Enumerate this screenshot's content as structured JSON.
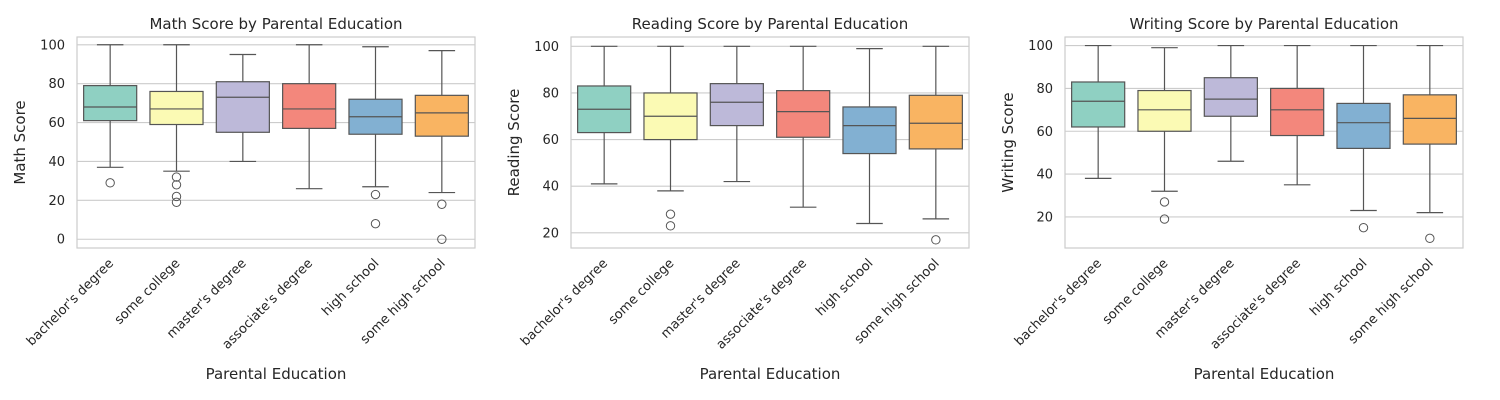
{
  "palette": [
    "#8fd0c2",
    "#fbfab4",
    "#bdb9d9",
    "#f3877c",
    "#82b0d2",
    "#f9b462"
  ],
  "chart_data": [
    {
      "type": "box",
      "title": "Math Score by Parental Education",
      "xlabel": "Parental Education",
      "ylabel": "Math Score",
      "ylim": [
        -4.5,
        104
      ],
      "yticks": [
        0,
        20,
        40,
        60,
        80,
        100
      ],
      "grid": "horizontal",
      "categories": [
        "bachelor's degree",
        "some college",
        "master's degree",
        "associate's degree",
        "high school",
        "some high school"
      ],
      "boxes": [
        {
          "whisker_low": 37,
          "q1": 61,
          "median": 68,
          "q3": 79,
          "whisker_high": 100,
          "outliers": [
            29
          ]
        },
        {
          "whisker_low": 35,
          "q1": 59,
          "median": 67,
          "q3": 76,
          "whisker_high": 100,
          "outliers": [
            19,
            22,
            28,
            32
          ]
        },
        {
          "whisker_low": 40,
          "q1": 55,
          "median": 73,
          "q3": 81,
          "whisker_high": 95,
          "outliers": []
        },
        {
          "whisker_low": 26,
          "q1": 57,
          "median": 67,
          "q3": 80,
          "whisker_high": 100,
          "outliers": []
        },
        {
          "whisker_low": 27,
          "q1": 54,
          "median": 63,
          "q3": 72,
          "whisker_high": 99,
          "outliers": [
            8,
            23
          ]
        },
        {
          "whisker_low": 24,
          "q1": 53,
          "median": 65,
          "q3": 74,
          "whisker_high": 97,
          "outliers": [
            0,
            18
          ]
        }
      ]
    },
    {
      "type": "box",
      "title": "Reading Score by Parental Education",
      "xlabel": "Parental Education",
      "ylabel": "Reading Score",
      "ylim": [
        13.5,
        104
      ],
      "yticks": [
        20,
        40,
        60,
        80,
        100
      ],
      "grid": "horizontal",
      "categories": [
        "bachelor's degree",
        "some college",
        "master's degree",
        "associate's degree",
        "high school",
        "some high school"
      ],
      "boxes": [
        {
          "whisker_low": 41,
          "q1": 63,
          "median": 73,
          "q3": 83,
          "whisker_high": 100,
          "outliers": []
        },
        {
          "whisker_low": 38,
          "q1": 60,
          "median": 70,
          "q3": 80,
          "whisker_high": 100,
          "outliers": [
            23,
            28
          ]
        },
        {
          "whisker_low": 42,
          "q1": 66,
          "median": 76,
          "q3": 84,
          "whisker_high": 100,
          "outliers": []
        },
        {
          "whisker_low": 31,
          "q1": 61,
          "median": 72,
          "q3": 81,
          "whisker_high": 100,
          "outliers": []
        },
        {
          "whisker_low": 24,
          "q1": 54,
          "median": 66,
          "q3": 74,
          "whisker_high": 99,
          "outliers": []
        },
        {
          "whisker_low": 26,
          "q1": 56,
          "median": 67,
          "q3": 79,
          "whisker_high": 100,
          "outliers": [
            17
          ]
        }
      ]
    },
    {
      "type": "box",
      "title": "Writing Score by Parental Education",
      "xlabel": "Parental Education",
      "ylabel": "Writing Score",
      "ylim": [
        5.5,
        104
      ],
      "yticks": [
        20,
        40,
        60,
        80,
        100
      ],
      "grid": "horizontal",
      "categories": [
        "bachelor's degree",
        "some college",
        "master's degree",
        "associate's degree",
        "high school",
        "some high school"
      ],
      "boxes": [
        {
          "whisker_low": 38,
          "q1": 62,
          "median": 74,
          "q3": 83,
          "whisker_high": 100,
          "outliers": []
        },
        {
          "whisker_low": 32,
          "q1": 60,
          "median": 70,
          "q3": 79,
          "whisker_high": 99,
          "outliers": [
            19,
            27
          ]
        },
        {
          "whisker_low": 46,
          "q1": 67,
          "median": 75,
          "q3": 85,
          "whisker_high": 100,
          "outliers": []
        },
        {
          "whisker_low": 35,
          "q1": 58,
          "median": 70,
          "q3": 80,
          "whisker_high": 100,
          "outliers": []
        },
        {
          "whisker_low": 23,
          "q1": 52,
          "median": 64,
          "q3": 73,
          "whisker_high": 100,
          "outliers": [
            15
          ]
        },
        {
          "whisker_low": 22,
          "q1": 54,
          "median": 66,
          "q3": 77,
          "whisker_high": 100,
          "outliers": [
            10
          ]
        }
      ]
    }
  ]
}
